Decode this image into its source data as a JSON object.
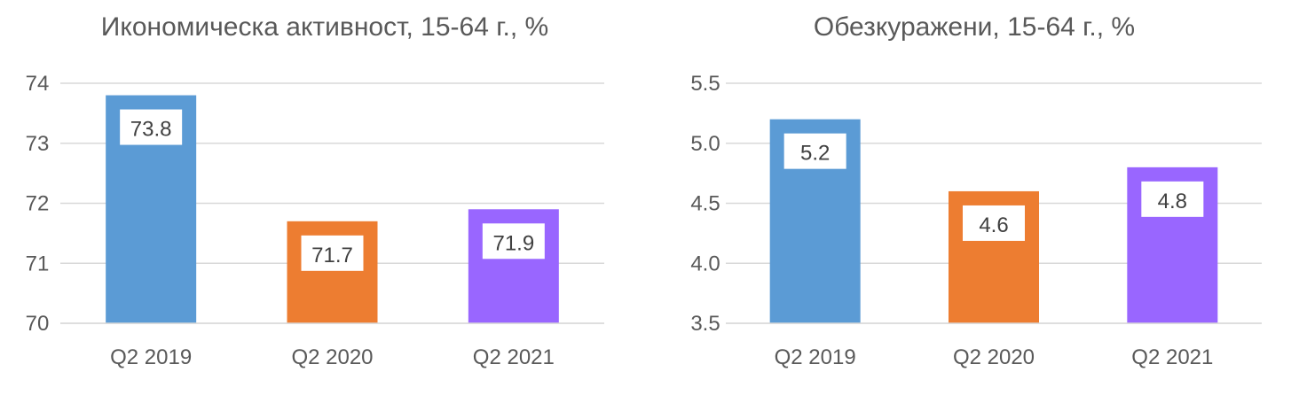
{
  "chart_data": [
    {
      "type": "bar",
      "title": "Икономическа активност, 15-64 г., %",
      "categories": [
        "Q2 2019",
        "Q2 2020",
        "Q2 2021"
      ],
      "values": [
        73.8,
        71.7,
        71.9
      ],
      "value_labels": [
        "73.8",
        "71.7",
        "71.9"
      ],
      "colors": [
        "#5b9bd5",
        "#ed7d31",
        "#9966ff"
      ],
      "ylim": [
        70,
        74
      ],
      "yticks": [
        70,
        71,
        72,
        73,
        74
      ],
      "ytick_labels": [
        "70",
        "71",
        "72",
        "73",
        "74"
      ],
      "grid": true,
      "xlabel": "",
      "ylabel": ""
    },
    {
      "type": "bar",
      "title": "Обезкуражени, 15-64 г., %",
      "categories": [
        "Q2 2019",
        "Q2 2020",
        "Q2 2021"
      ],
      "values": [
        5.2,
        4.6,
        4.8
      ],
      "value_labels": [
        "5.2",
        "4.6",
        "4.8"
      ],
      "colors": [
        "#5b9bd5",
        "#ed7d31",
        "#9966ff"
      ],
      "ylim": [
        3.5,
        5.5
      ],
      "yticks": [
        3.5,
        4.0,
        4.5,
        5.0,
        5.5
      ],
      "ytick_labels": [
        "3.5",
        "4.0",
        "4.5",
        "5.0",
        "5.5"
      ],
      "grid": true,
      "xlabel": "",
      "ylabel": ""
    }
  ]
}
